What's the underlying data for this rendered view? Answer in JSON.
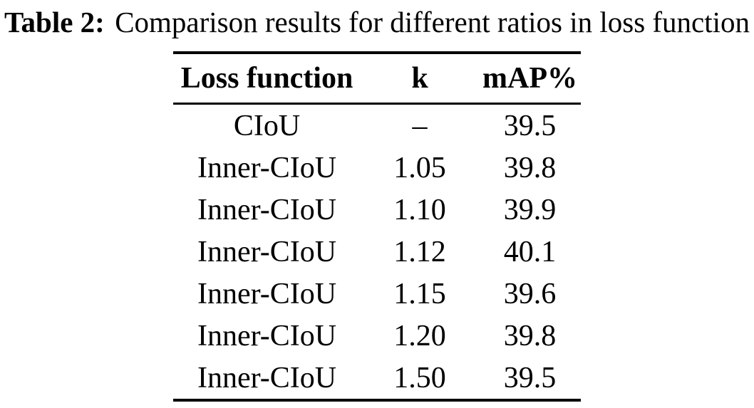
{
  "caption": {
    "label": "Table 2:",
    "text": "Comparison results for different ratios in loss function"
  },
  "table": {
    "columns": [
      "Loss function",
      "k",
      "mAP%"
    ],
    "rows": [
      [
        "CIoU",
        "–",
        "39.5"
      ],
      [
        "Inner-CIoU",
        "1.05",
        "39.8"
      ],
      [
        "Inner-CIoU",
        "1.10",
        "39.9"
      ],
      [
        "Inner-CIoU",
        "1.12",
        "40.1"
      ],
      [
        "Inner-CIoU",
        "1.15",
        "39.6"
      ],
      [
        "Inner-CIoU",
        "1.20",
        "39.8"
      ],
      [
        "Inner-CIoU",
        "1.50",
        "39.5"
      ]
    ]
  },
  "colors": {
    "text": "#000000",
    "background": "#ffffff",
    "rule": "#000000"
  }
}
